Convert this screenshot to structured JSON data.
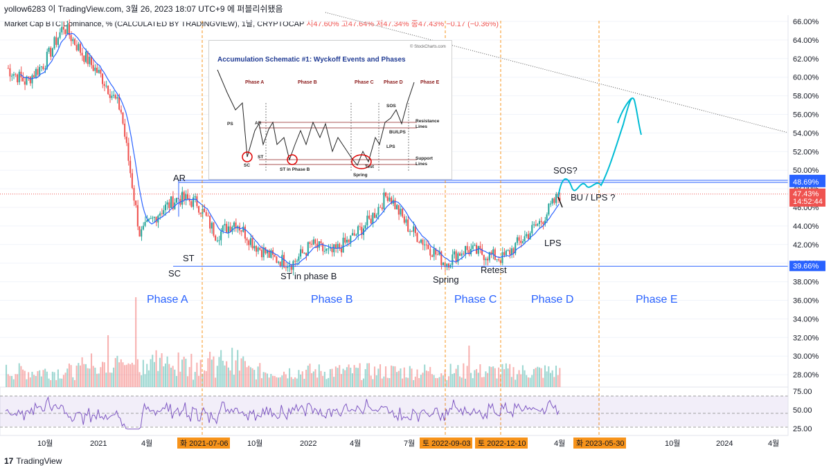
{
  "header": {
    "text": "yollow6283 이 TradingView.com, 3월 26, 2023 18:07 UTC+9 에 퍼블리쉬됐음"
  },
  "legend": {
    "title": "Market Cap BTC Dominance, % (CALCULATED BY TRADINGVIEW), 1날, CRYPTOCAP",
    "open": "시47.60%",
    "high": "고47.64%",
    "low": "저47.34%",
    "close": "종47.43%",
    "change": "−0.17 (−0.36%)"
  },
  "price_scale": {
    "ticks": [
      "66.00%",
      "64.00%",
      "62.00%",
      "60.00%",
      "58.00%",
      "56.00%",
      "54.00%",
      "52.00%",
      "50.00%",
      "48.00%",
      "46.00%",
      "44.00%",
      "42.00%",
      "40.00%",
      "38.00%",
      "36.00%",
      "34.00%",
      "32.00%",
      "30.00%",
      "28.00%"
    ],
    "tags": [
      {
        "label": "48.91%",
        "value": 48.91,
        "color": "#2962ff"
      },
      {
        "label": "48.69%",
        "value": 48.69,
        "color": "#2962ff"
      },
      {
        "label": "47.43%",
        "value": 47.43,
        "color": "#ef5350"
      },
      {
        "label": "14:52:44",
        "value": 46.6,
        "color": "#ef5350"
      },
      {
        "label": "39.66%",
        "value": 39.66,
        "color": "#2962ff"
      }
    ]
  },
  "rsi_scale": {
    "ticks": [
      "75.00",
      "50.00",
      "25.00"
    ]
  },
  "time_axis": {
    "ticks": [
      "10월",
      "2021",
      "4월",
      "10월",
      "2022",
      "4월",
      "7월",
      "4월",
      "10월",
      "2024",
      "4월"
    ],
    "date_tags": [
      "화 2021-07-06",
      "토 2022-09-03",
      "토 2022-12-10",
      "화 2023-05-30"
    ]
  },
  "annotations": {
    "ar": "AR",
    "sc": "SC",
    "st": "ST",
    "st_phase_b": "ST in phase B",
    "spring": "Spring",
    "retest": "Retest",
    "lps": "LPS",
    "sos": "SOS?",
    "bu_lps": "BU / LPS ?"
  },
  "phases": [
    "Phase A",
    "Phase B",
    "Phase C",
    "Phase D",
    "Phase E"
  ],
  "inset": {
    "credit": "© StockCharts.com",
    "title": "Accumulation Schematic #1: Wyckoff Events and Phases",
    "phases": [
      "Phase A",
      "Phase B",
      "Phase C",
      "Phase D",
      "Phase E"
    ],
    "labels": {
      "ps": "PS",
      "ar": "AR",
      "sc": "SC",
      "st": "ST",
      "st_phase_b": "ST in Phase B",
      "spring": "Spring",
      "test": "Test",
      "sos": "SOS",
      "bu_lps": "BU/LPS",
      "lps": "LPS",
      "resistance": "Resistance",
      "support": "Support",
      "lines": "Lines"
    }
  },
  "brand": "TradingView",
  "colors": {
    "up": "#26a69a",
    "down": "#ef5350",
    "ma": "#2962ff",
    "rsi": "#7e57c2",
    "projection": "#00bcd4",
    "phase_label": "#2962ff",
    "date_tag": "#f7931a"
  },
  "chart_data": {
    "type": "line",
    "x": [
      "2020-09",
      "2020-10",
      "2020-12",
      "2021-01",
      "2021-02",
      "2021-03",
      "2021-04",
      "2021-05",
      "2021-06",
      "2021-07",
      "2021-08",
      "2021-09",
      "2021-10",
      "2021-11",
      "2021-12",
      "2022-01",
      "2022-02",
      "2022-03",
      "2022-04",
      "2022-05",
      "2022-06",
      "2022-07",
      "2022-08",
      "2022-09",
      "2022-10",
      "2022-11",
      "2022-12",
      "2023-01",
      "2023-02",
      "2023-03"
    ],
    "series": [
      {
        "values": [
          61.0,
          59.5,
          61.5,
          65.5,
          62.5,
          60.0,
          56.5,
          43.0,
          45.5,
          47.0,
          46.5,
          43.0,
          44.5,
          42.0,
          40.5,
          40.0,
          42.0,
          41.0,
          42.5,
          44.5,
          47.5,
          44.0,
          42.0,
          40.0,
          41.5,
          41.0,
          40.5,
          42.5,
          44.5,
          47.4
        ]
      }
    ],
    "ylabel": "",
    "ylim": [
      26,
      67
    ],
    "horizontal_levels": [
      48.91,
      48.69,
      39.66
    ],
    "rsi": {
      "ylim": [
        20,
        85
      ],
      "levels": [
        70,
        50,
        30
      ]
    }
  }
}
